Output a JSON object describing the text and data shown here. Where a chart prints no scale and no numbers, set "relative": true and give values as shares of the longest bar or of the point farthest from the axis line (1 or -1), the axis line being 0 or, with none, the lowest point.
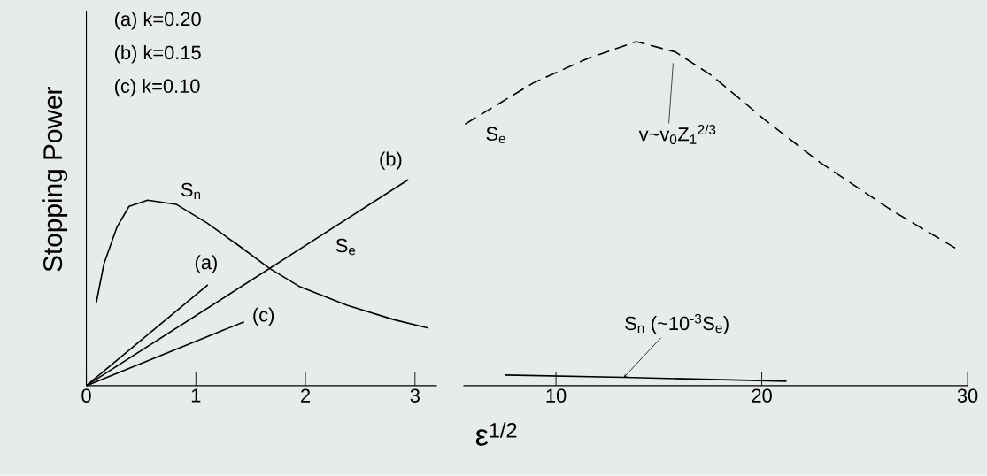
{
  "chart_data": [
    {
      "type": "line",
      "relative": true,
      "xlabel": "ε$^{1/2}$",
      "ylabel": "Stopping Power",
      "xlim": [
        0,
        3.2
      ],
      "xticks": [
        0,
        1,
        2,
        3
      ],
      "line_style": "solid",
      "annotations": [
        "(a) k=0.20",
        "(b) k=0.15",
        "(c) k=0.10",
        "S$_{e}$"
      ],
      "series": [
        {
          "name": "(a)",
          "color": "#000000",
          "x": [
            0,
            1.11
          ],
          "values": [
            0,
            0.49
          ]
        },
        {
          "name": "(b)",
          "color": "#000000",
          "x": [
            0,
            2.94
          ],
          "values": [
            0,
            1.0
          ]
        },
        {
          "name": "(c)",
          "color": "#000000",
          "x": [
            0,
            1.44
          ],
          "values": [
            0,
            0.31
          ]
        },
        {
          "name": "S$_{n}$",
          "color": "#000000",
          "x": [
            0.09,
            0.16,
            0.28,
            0.39,
            0.56,
            0.82,
            1.1,
            1.39,
            1.67,
            1.95,
            2.38,
            2.81,
            3.12
          ],
          "values": [
            0.4,
            0.59,
            0.77,
            0.87,
            0.9,
            0.88,
            0.79,
            0.68,
            0.57,
            0.48,
            0.39,
            0.32,
            0.28
          ]
        }
      ]
    },
    {
      "type": "line",
      "relative": true,
      "xlim": [
        5.5,
        30
      ],
      "xticks": [
        10,
        20,
        30
      ],
      "annotations": [
        "v~v$_{0}$Z$_{1}$$^{2/3}$"
      ],
      "series": [
        {
          "name": "S$_{e}$",
          "color": "#000000",
          "line_style": "dashed",
          "x": [
            5.58,
            8.9,
            11.5,
            13.9,
            15.8,
            17.6,
            20.2,
            22.8,
            26.3,
            29.4
          ],
          "values": [
            0.76,
            0.88,
            0.95,
            1.0,
            0.97,
            0.9,
            0.77,
            0.65,
            0.51,
            0.4
          ]
        },
        {
          "name": "S$_{n}$ (~10$^{-3}$S$_{e}$)",
          "color": "#000000",
          "line_style": "solid",
          "x": [
            7.5,
            13.3,
            21.2
          ],
          "values": [
            0.031,
            0.024,
            0.013
          ]
        }
      ]
    }
  ]
}
